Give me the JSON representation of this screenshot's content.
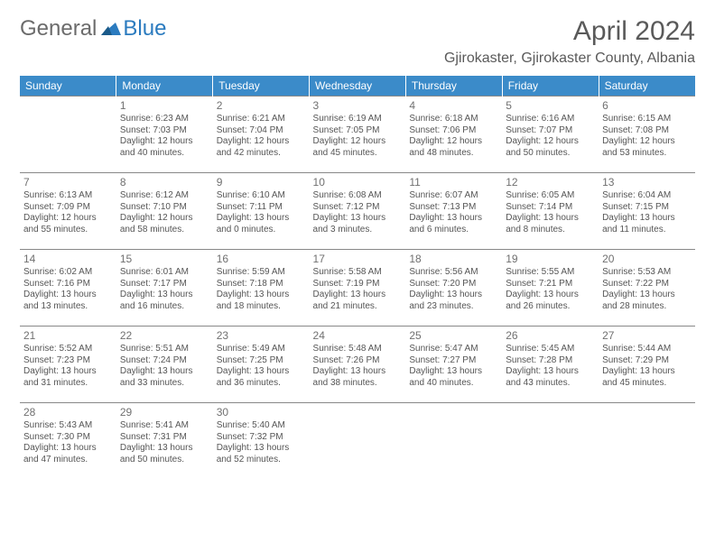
{
  "logo": {
    "text1": "General",
    "text2": "Blue"
  },
  "title": "April 2024",
  "location": "Gjirokaster, Gjirokaster County, Albania",
  "weekdays": [
    "Sunday",
    "Monday",
    "Tuesday",
    "Wednesday",
    "Thursday",
    "Friday",
    "Saturday"
  ],
  "colors": {
    "header_bg": "#3b8bc9",
    "header_text": "#ffffff",
    "logo_gray": "#6b6b6b",
    "logo_blue": "#2b7bbf",
    "text": "#555555",
    "border": "#888888",
    "background": "#ffffff"
  },
  "grid": [
    [
      null,
      {
        "n": "1",
        "sr": "6:23 AM",
        "ss": "7:03 PM",
        "dl": "12 hours and 40 minutes."
      },
      {
        "n": "2",
        "sr": "6:21 AM",
        "ss": "7:04 PM",
        "dl": "12 hours and 42 minutes."
      },
      {
        "n": "3",
        "sr": "6:19 AM",
        "ss": "7:05 PM",
        "dl": "12 hours and 45 minutes."
      },
      {
        "n": "4",
        "sr": "6:18 AM",
        "ss": "7:06 PM",
        "dl": "12 hours and 48 minutes."
      },
      {
        "n": "5",
        "sr": "6:16 AM",
        "ss": "7:07 PM",
        "dl": "12 hours and 50 minutes."
      },
      {
        "n": "6",
        "sr": "6:15 AM",
        "ss": "7:08 PM",
        "dl": "12 hours and 53 minutes."
      }
    ],
    [
      {
        "n": "7",
        "sr": "6:13 AM",
        "ss": "7:09 PM",
        "dl": "12 hours and 55 minutes."
      },
      {
        "n": "8",
        "sr": "6:12 AM",
        "ss": "7:10 PM",
        "dl": "12 hours and 58 minutes."
      },
      {
        "n": "9",
        "sr": "6:10 AM",
        "ss": "7:11 PM",
        "dl": "13 hours and 0 minutes."
      },
      {
        "n": "10",
        "sr": "6:08 AM",
        "ss": "7:12 PM",
        "dl": "13 hours and 3 minutes."
      },
      {
        "n": "11",
        "sr": "6:07 AM",
        "ss": "7:13 PM",
        "dl": "13 hours and 6 minutes."
      },
      {
        "n": "12",
        "sr": "6:05 AM",
        "ss": "7:14 PM",
        "dl": "13 hours and 8 minutes."
      },
      {
        "n": "13",
        "sr": "6:04 AM",
        "ss": "7:15 PM",
        "dl": "13 hours and 11 minutes."
      }
    ],
    [
      {
        "n": "14",
        "sr": "6:02 AM",
        "ss": "7:16 PM",
        "dl": "13 hours and 13 minutes."
      },
      {
        "n": "15",
        "sr": "6:01 AM",
        "ss": "7:17 PM",
        "dl": "13 hours and 16 minutes."
      },
      {
        "n": "16",
        "sr": "5:59 AM",
        "ss": "7:18 PM",
        "dl": "13 hours and 18 minutes."
      },
      {
        "n": "17",
        "sr": "5:58 AM",
        "ss": "7:19 PM",
        "dl": "13 hours and 21 minutes."
      },
      {
        "n": "18",
        "sr": "5:56 AM",
        "ss": "7:20 PM",
        "dl": "13 hours and 23 minutes."
      },
      {
        "n": "19",
        "sr": "5:55 AM",
        "ss": "7:21 PM",
        "dl": "13 hours and 26 minutes."
      },
      {
        "n": "20",
        "sr": "5:53 AM",
        "ss": "7:22 PM",
        "dl": "13 hours and 28 minutes."
      }
    ],
    [
      {
        "n": "21",
        "sr": "5:52 AM",
        "ss": "7:23 PM",
        "dl": "13 hours and 31 minutes."
      },
      {
        "n": "22",
        "sr": "5:51 AM",
        "ss": "7:24 PM",
        "dl": "13 hours and 33 minutes."
      },
      {
        "n": "23",
        "sr": "5:49 AM",
        "ss": "7:25 PM",
        "dl": "13 hours and 36 minutes."
      },
      {
        "n": "24",
        "sr": "5:48 AM",
        "ss": "7:26 PM",
        "dl": "13 hours and 38 minutes."
      },
      {
        "n": "25",
        "sr": "5:47 AM",
        "ss": "7:27 PM",
        "dl": "13 hours and 40 minutes."
      },
      {
        "n": "26",
        "sr": "5:45 AM",
        "ss": "7:28 PM",
        "dl": "13 hours and 43 minutes."
      },
      {
        "n": "27",
        "sr": "5:44 AM",
        "ss": "7:29 PM",
        "dl": "13 hours and 45 minutes."
      }
    ],
    [
      {
        "n": "28",
        "sr": "5:43 AM",
        "ss": "7:30 PM",
        "dl": "13 hours and 47 minutes."
      },
      {
        "n": "29",
        "sr": "5:41 AM",
        "ss": "7:31 PM",
        "dl": "13 hours and 50 minutes."
      },
      {
        "n": "30",
        "sr": "5:40 AM",
        "ss": "7:32 PM",
        "dl": "13 hours and 52 minutes."
      },
      null,
      null,
      null,
      null
    ]
  ],
  "labels": {
    "sunrise": "Sunrise:",
    "sunset": "Sunset:",
    "daylight": "Daylight:"
  }
}
